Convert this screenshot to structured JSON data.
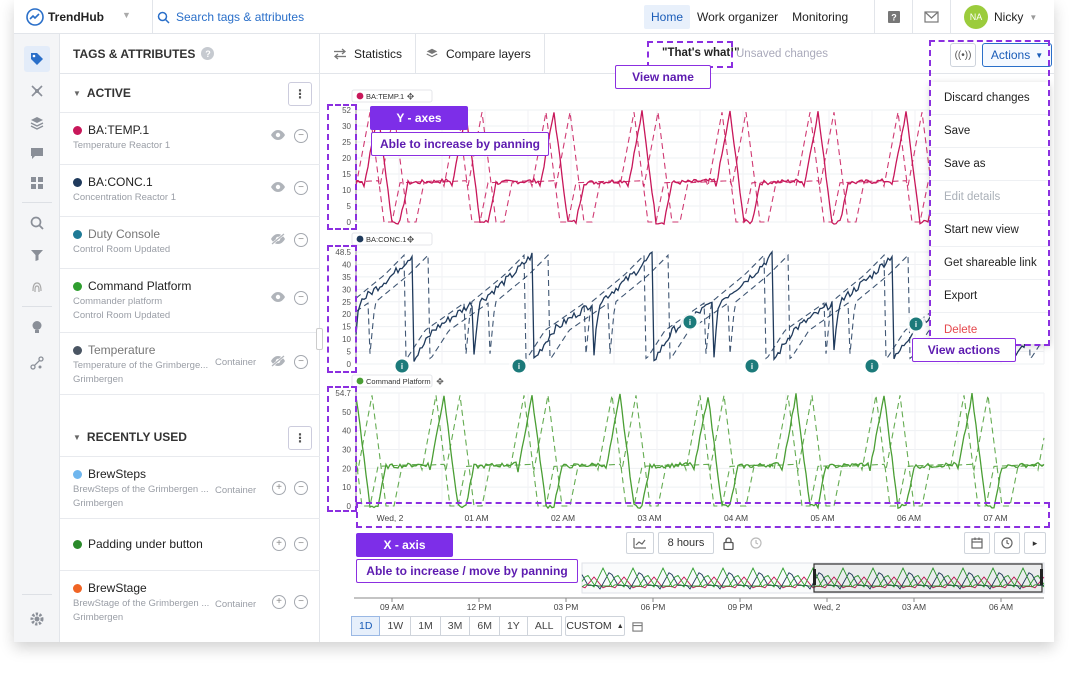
{
  "app": {
    "name": "TrendHub"
  },
  "header": {
    "search_placeholder": "Search tags & attributes",
    "nav": [
      {
        "label": "Home",
        "active": true
      },
      {
        "label": "Work organizer",
        "active": false
      },
      {
        "label": "Monitoring",
        "active": false
      }
    ],
    "user": {
      "initials": "NA",
      "name": "Nicky"
    }
  },
  "panel": {
    "title": "TAGS & ATTRIBUTES",
    "active_title": "ACTIVE",
    "recent_title": "RECENTLY USED",
    "active_tags": [
      {
        "name": "BA:TEMP.1",
        "subs": [
          "Temperature Reactor 1"
        ],
        "color": "#c8175a",
        "visible": true
      },
      {
        "name": "BA:CONC.1",
        "subs": [
          "Concentration Reactor 1"
        ],
        "color": "#1f3a5c",
        "visible": true
      },
      {
        "name": "Duty Console",
        "subs": [
          "Control Room Updated"
        ],
        "color": "#1e7a96",
        "visible": false
      },
      {
        "name": "Command Platform",
        "subs": [
          "Commander platform",
          "Control Room Updated"
        ],
        "color": "#2f9e2f",
        "visible": true
      },
      {
        "name": "Temperature",
        "subs": [
          "Temperature of the Grimberge...",
          "Grimbergen"
        ],
        "container": "Container",
        "color": "#4a5563",
        "visible": false
      }
    ],
    "recent_tags": [
      {
        "name": "BrewSteps",
        "subs": [
          "BrewSteps of the Grimbergen ...",
          "Grimbergen"
        ],
        "container": "Container",
        "color": "#6fb6ee"
      },
      {
        "name": "Padding under button",
        "subs": [],
        "color": "#2a8a2a"
      },
      {
        "name": "BrewStage",
        "subs": [
          "BrewStage of the Grimbergen ...",
          "Grimbergen"
        ],
        "container": "Container",
        "color": "#f06424"
      }
    ]
  },
  "toolbar": {
    "statistics": "Statistics",
    "compare": "Compare layers",
    "view_name": "\"That's what!\"",
    "unsaved": "Unsaved changes",
    "actions": "Actions"
  },
  "actions_menu": [
    {
      "label": "Discard changes",
      "state": "normal"
    },
    {
      "label": "Save",
      "state": "normal"
    },
    {
      "label": "Save as",
      "state": "normal"
    },
    {
      "label": "Edit details",
      "state": "disabled"
    },
    {
      "label": "Start new view",
      "state": "normal"
    },
    {
      "label": "Get shareable link",
      "state": "normal"
    },
    {
      "label": "Export",
      "state": "normal"
    },
    {
      "label": "Delete",
      "state": "danger"
    }
  ],
  "annotations": {
    "view_name": "View name",
    "y_axes": "Y - axes",
    "y_pan": "Able to increase by panning",
    "view_actions": "View actions",
    "x_axis": "X - axis",
    "x_pan": "Able to increase / move by panning"
  },
  "chart_data": [
    {
      "type": "line",
      "name": "BA:TEMP.1",
      "color": "#c8175a",
      "ylim": [
        0,
        52
      ],
      "y_ticks": [
        "52",
        "30",
        "25",
        "20",
        "15",
        "10",
        "5",
        "0"
      ],
      "pattern": "triangle-plateau"
    },
    {
      "type": "line",
      "name": "BA:CONC.1",
      "color": "#1f3a5c",
      "ylim": [
        0,
        48.5
      ],
      "y_ticks": [
        "48.5",
        "40",
        "35",
        "30",
        "25",
        "20",
        "15",
        "10",
        "5",
        "0"
      ],
      "pattern": "sawtooth-drop",
      "info_markers": 6
    },
    {
      "type": "line",
      "name": "Command Platform",
      "color": "#4a9e34",
      "ylim": [
        0,
        54.7
      ],
      "y_ticks": [
        "54.7",
        "50",
        "40",
        "30",
        "20",
        "10",
        "0"
      ],
      "pattern": "triangle-plateau"
    }
  ],
  "x_axis": {
    "ticks": [
      "Wed, 2",
      "01 AM",
      "02 AM",
      "03 AM",
      "04 AM",
      "05 AM",
      "06 AM",
      "07 AM"
    ]
  },
  "timebar": {
    "duration": "8 hours",
    "overview_ticks": [
      "09 AM",
      "12 PM",
      "03 PM",
      "06 PM",
      "09 PM",
      "Wed, 2",
      "03 AM",
      "06 AM"
    ],
    "ranges": [
      "1D",
      "1W",
      "1M",
      "3M",
      "6M",
      "1Y",
      "ALL"
    ],
    "active_range": "1D",
    "custom": "CUSTOM"
  }
}
